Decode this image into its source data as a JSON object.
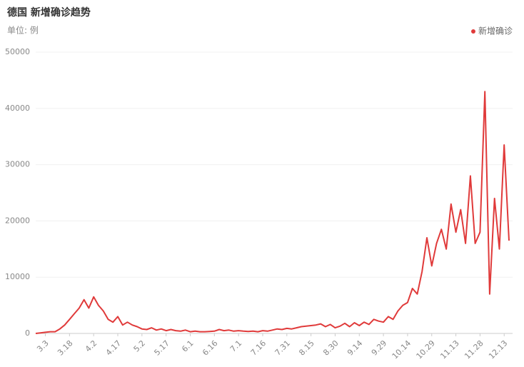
{
  "chart_data": {
    "type": "line",
    "title": "德国 新增确诊趋势",
    "subtitle": "单位: 例",
    "x": [
      null,
      null,
      "3.3",
      null,
      null,
      null,
      null,
      "3.18",
      null,
      null,
      null,
      null,
      "4.2",
      null,
      null,
      null,
      null,
      "4.17",
      null,
      null,
      null,
      null,
      "5.2",
      null,
      null,
      null,
      null,
      "5.17",
      null,
      null,
      null,
      null,
      "6.1",
      null,
      null,
      null,
      null,
      "6.16",
      null,
      null,
      null,
      null,
      "7.1",
      null,
      null,
      null,
      null,
      "7.16",
      null,
      null,
      null,
      null,
      "7.31",
      null,
      null,
      null,
      null,
      "8.15",
      null,
      null,
      null,
      null,
      "8.30",
      null,
      null,
      null,
      null,
      "9.14",
      null,
      null,
      null,
      null,
      "9.29",
      null,
      null,
      null,
      null,
      "10.14",
      null,
      null,
      null,
      null,
      "10.29",
      null,
      null,
      null,
      null,
      "11.13",
      null,
      null,
      null,
      null,
      "11.28",
      null,
      null,
      null,
      null,
      "12.13",
      null
    ],
    "series": [
      {
        "name": "新增确诊",
        "color": "#e03a3a",
        "values": [
          0,
          100,
          200,
          300,
          300,
          800,
          1500,
          2500,
          3500,
          4500,
          6000,
          4500,
          6500,
          5000,
          4000,
          2500,
          2000,
          3000,
          1500,
          2000,
          1500,
          1200,
          800,
          700,
          1000,
          600,
          800,
          500,
          700,
          500,
          400,
          600,
          300,
          400,
          300,
          300,
          350,
          400,
          700,
          500,
          600,
          400,
          500,
          400,
          350,
          400,
          300,
          500,
          400,
          600,
          800,
          700,
          900,
          800,
          1000,
          1200,
          1300,
          1400,
          1500,
          1700,
          1200,
          1600,
          1000,
          1300,
          1800,
          1200,
          1900,
          1400,
          2000,
          1600,
          2500,
          2200,
          2000,
          3000,
          2500,
          4000,
          5000,
          5500,
          8000,
          7000,
          11000,
          17000,
          12000,
          16000,
          18500,
          15000,
          23000,
          18000,
          22000,
          16000,
          28000,
          16000,
          18000,
          43000,
          7000,
          24000,
          15000,
          33500,
          16500
        ]
      }
    ],
    "ylim": [
      0,
      50000
    ],
    "yticks": [
      0,
      10000,
      20000,
      30000,
      40000,
      50000
    ],
    "grid": true,
    "legend": "top-right"
  }
}
